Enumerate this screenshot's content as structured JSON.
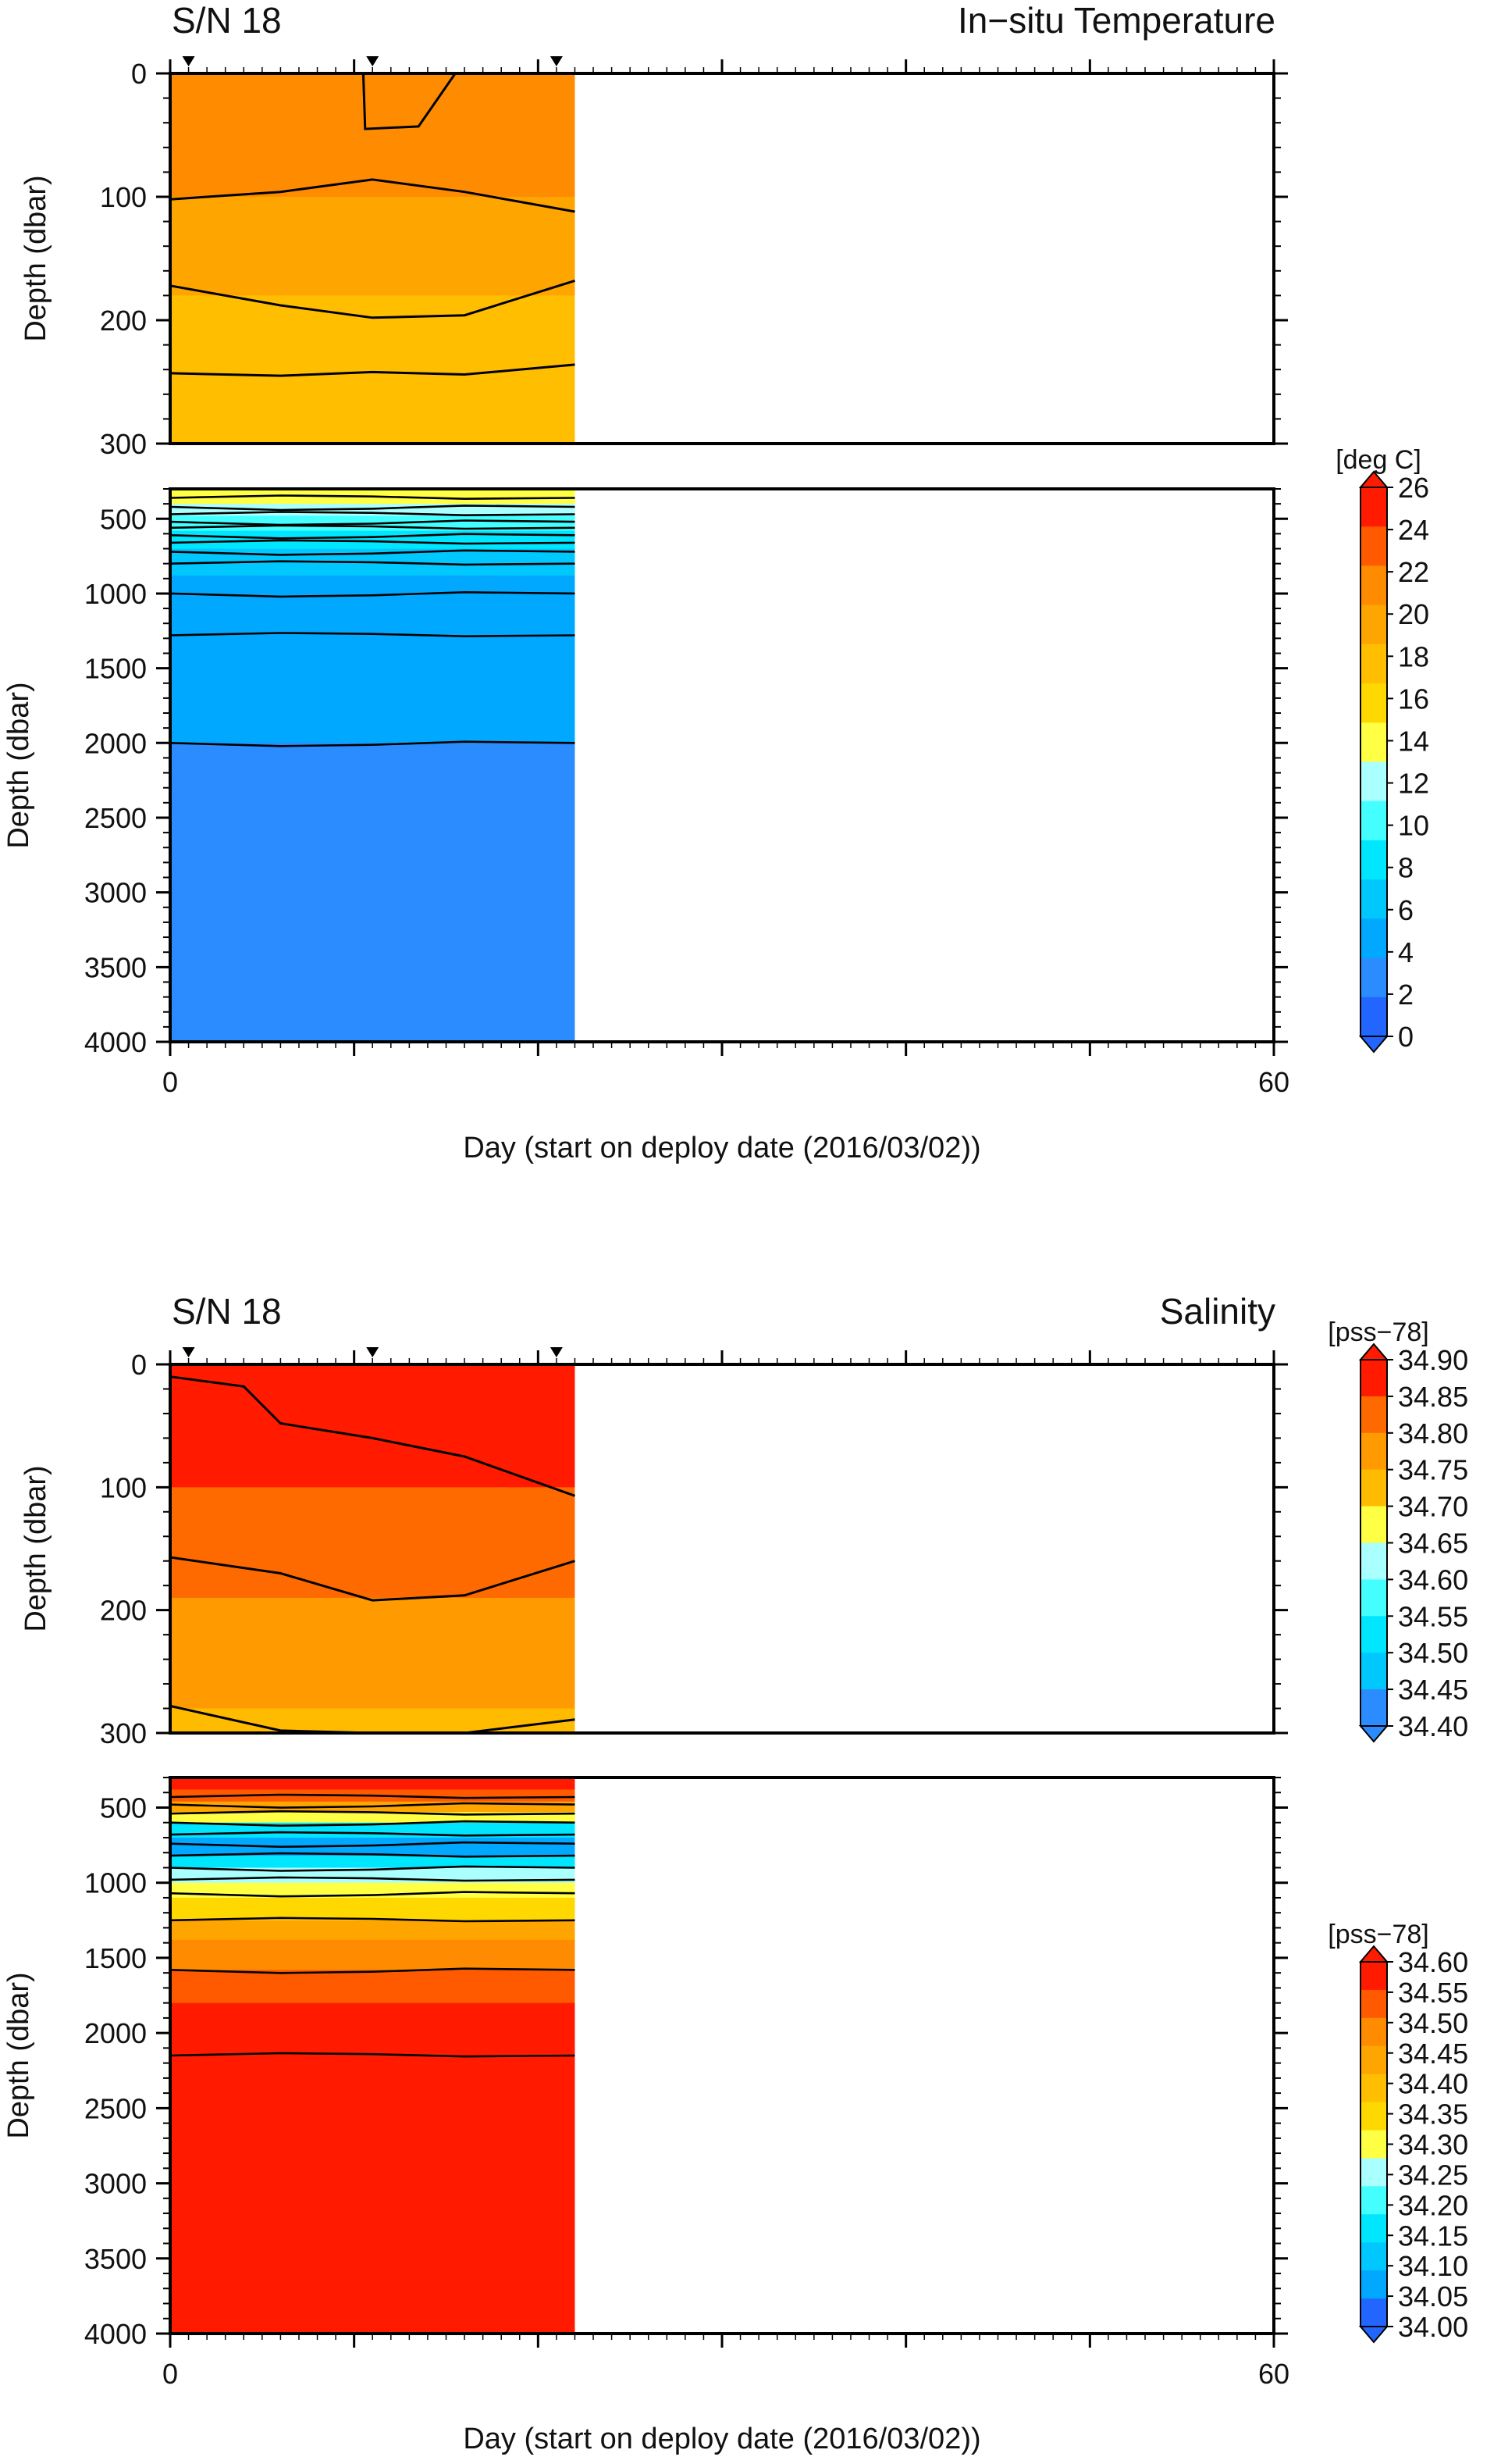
{
  "chart_data": [
    {
      "type": "heatmap",
      "title_left": "S/N 18",
      "title_right": "In−situ Temperature",
      "xlabel": "Day (start on deploy date (2016/03/02))",
      "x_ticks": [
        "0",
        "60"
      ],
      "xlim": [
        0,
        60
      ],
      "data_extent_days": [
        0,
        22
      ],
      "profile_marker_days": [
        1,
        11,
        21
      ],
      "upper_panel": {
        "ylabel": "Depth (dbar)",
        "ylim": [
          0,
          300
        ],
        "y_ticks": [
          "0",
          "100",
          "200",
          "300"
        ],
        "y_tick_values": [
          0,
          100,
          200,
          300
        ],
        "bands": [
          {
            "from": 0,
            "to": 100,
            "value": "20-22"
          },
          {
            "from": 100,
            "to": 180,
            "value": "18-20"
          },
          {
            "from": 180,
            "to": 300,
            "value": "16-18"
          }
        ],
        "contours": [
          {
            "level": 22,
            "points": [
              [
                10.5,
                0
              ],
              [
                10.6,
                45
              ],
              [
                13.5,
                43
              ],
              [
                15.5,
                0
              ]
            ]
          },
          {
            "level": 20,
            "points": [
              [
                0,
                102
              ],
              [
                6,
                96
              ],
              [
                11,
                86
              ],
              [
                16,
                96
              ],
              [
                22,
                112
              ]
            ]
          },
          {
            "level": 18,
            "points": [
              [
                0,
                172
              ],
              [
                6,
                188
              ],
              [
                11,
                198
              ],
              [
                16,
                196
              ],
              [
                22,
                168
              ]
            ]
          },
          {
            "level": 16,
            "points": [
              [
                0,
                243
              ],
              [
                6,
                245
              ],
              [
                11,
                242
              ],
              [
                16,
                244
              ],
              [
                22,
                236
              ]
            ]
          }
        ]
      },
      "lower_panel": {
        "ylabel": "Depth (dbar)",
        "ylim": [
          300,
          4000
        ],
        "y_ticks": [
          "500",
          "1000",
          "1500",
          "2000",
          "2500",
          "3000",
          "3500",
          "4000"
        ],
        "y_tick_values": [
          500,
          1000,
          1500,
          2000,
          2500,
          3000,
          3500,
          4000
        ],
        "bands": [
          {
            "from": 300,
            "to": 400,
            "value": "12-14"
          },
          {
            "from": 400,
            "to": 480,
            "value": "10-12"
          },
          {
            "from": 480,
            "to": 580,
            "value": "8-10"
          },
          {
            "from": 580,
            "to": 700,
            "value": "6-8"
          },
          {
            "from": 700,
            "to": 880,
            "value": "4-6"
          },
          {
            "from": 880,
            "to": 1280,
            "value": "2-4"
          },
          {
            "from": 1280,
            "to": 2000,
            "value": "2-4"
          },
          {
            "from": 2000,
            "to": 4000,
            "value": "0-2"
          }
        ],
        "contour_levels_dbar": [
          360,
          420,
          470,
          520,
          560,
          610,
          660,
          720,
          800,
          1000,
          1280,
          2000
        ]
      },
      "colorbar": {
        "unit": "[deg C]",
        "labels": [
          "26",
          "24",
          "22",
          "20",
          "18",
          "16",
          "14",
          "12",
          "10",
          "8",
          "6",
          "4",
          "2",
          "0"
        ],
        "colors": [
          "#ff1a00",
          "#ff5a00",
          "#ff8c00",
          "#ffa500",
          "#ffbf00",
          "#ffd800",
          "#ffff44",
          "#aaffff",
          "#44ffff",
          "#00e6ff",
          "#00c8ff",
          "#00a8ff",
          "#2a8cff",
          "#2266ff"
        ]
      }
    },
    {
      "type": "heatmap",
      "title_left": "S/N 18",
      "title_right": "Salinity",
      "xlabel": "Day (start on deploy date (2016/03/02))",
      "x_ticks": [
        "0",
        "60"
      ],
      "xlim": [
        0,
        60
      ],
      "data_extent_days": [
        0,
        22
      ],
      "profile_marker_days": [
        1,
        11,
        21
      ],
      "upper_panel": {
        "ylabel": "Depth (dbar)",
        "ylim": [
          0,
          300
        ],
        "y_ticks": [
          "0",
          "100",
          "200",
          "300"
        ],
        "y_tick_values": [
          0,
          100,
          200,
          300
        ],
        "bands": [
          {
            "from": 0,
            "to": 100,
            "value": "34.85-34.90"
          },
          {
            "from": 100,
            "to": 190,
            "value": "34.80-34.85"
          },
          {
            "from": 190,
            "to": 280,
            "value": "34.75-34.80"
          },
          {
            "from": 280,
            "to": 300,
            "value": "34.70-34.75"
          }
        ],
        "contours": [
          {
            "level": 34.85,
            "points": [
              [
                0,
                10
              ],
              [
                4,
                18
              ],
              [
                6,
                48
              ],
              [
                11,
                60
              ],
              [
                16,
                75
              ],
              [
                22,
                107
              ]
            ]
          },
          {
            "level": 34.8,
            "points": [
              [
                0,
                157
              ],
              [
                6,
                170
              ],
              [
                11,
                192
              ],
              [
                16,
                188
              ],
              [
                22,
                160
              ]
            ]
          },
          {
            "level": 34.75,
            "points": [
              [
                0,
                278
              ],
              [
                6,
                298
              ],
              [
                11,
                300
              ],
              [
                16,
                300
              ],
              [
                22,
                289
              ]
            ]
          }
        ]
      },
      "lower_panel": {
        "ylabel": "Depth (dbar)",
        "ylim": [
          300,
          4000
        ],
        "y_ticks": [
          "500",
          "1000",
          "1500",
          "2000",
          "2500",
          "3000",
          "3500",
          "4000"
        ],
        "y_tick_values": [
          500,
          1000,
          1500,
          2000,
          2500,
          3000,
          3500,
          4000
        ],
        "bands": [
          {
            "from": 300,
            "to": 380,
            "value": "34.55-34.60"
          },
          {
            "from": 380,
            "to": 460,
            "value": "34.50-34.55"
          },
          {
            "from": 460,
            "to": 530,
            "value": "34.40-34.45"
          },
          {
            "from": 530,
            "to": 600,
            "value": "34.25-34.30"
          },
          {
            "from": 600,
            "to": 700,
            "value": "34.10-34.15"
          },
          {
            "from": 700,
            "to": 820,
            "value": "34.00-34.05"
          },
          {
            "from": 820,
            "to": 900,
            "value": "34.10-34.15"
          },
          {
            "from": 900,
            "to": 1000,
            "value": "34.20-34.25"
          },
          {
            "from": 1000,
            "to": 1100,
            "value": "34.25-34.30"
          },
          {
            "from": 1100,
            "to": 1250,
            "value": "34.30-34.35"
          },
          {
            "from": 1250,
            "to": 1380,
            "value": "34.40-34.45"
          },
          {
            "from": 1380,
            "to": 1580,
            "value": "34.45-34.50"
          },
          {
            "from": 1580,
            "to": 1800,
            "value": "34.50-34.55"
          },
          {
            "from": 1800,
            "to": 4000,
            "value": "34.55-34.60"
          }
        ],
        "contour_levels_dbar": [
          430,
          480,
          540,
          600,
          680,
          740,
          820,
          900,
          980,
          1070,
          1250,
          1580,
          2150
        ]
      },
      "colorbar_upper": {
        "unit": "[pss−78]",
        "labels": [
          "34.90",
          "34.85",
          "34.80",
          "34.75",
          "34.70",
          "34.65",
          "34.60",
          "34.55",
          "34.50",
          "34.45",
          "34.40"
        ],
        "colors": [
          "#ff1a00",
          "#ff6a00",
          "#ff9a00",
          "#ffbb00",
          "#ffff44",
          "#aaffff",
          "#44ffff",
          "#00e6ff",
          "#00c8ff",
          "#2a8cff"
        ]
      },
      "colorbar_lower": {
        "unit": "[pss−78]",
        "labels": [
          "34.60",
          "34.55",
          "34.50",
          "34.45",
          "34.40",
          "34.35",
          "34.30",
          "34.25",
          "34.20",
          "34.15",
          "34.10",
          "34.05",
          "34.00"
        ],
        "colors": [
          "#ff1a00",
          "#ff5a00",
          "#ff8c00",
          "#ffa500",
          "#ffbf00",
          "#ffd800",
          "#ffff44",
          "#aaffff",
          "#44ffff",
          "#00e6ff",
          "#00c8ff",
          "#00a8ff",
          "#2266ff"
        ]
      }
    }
  ]
}
